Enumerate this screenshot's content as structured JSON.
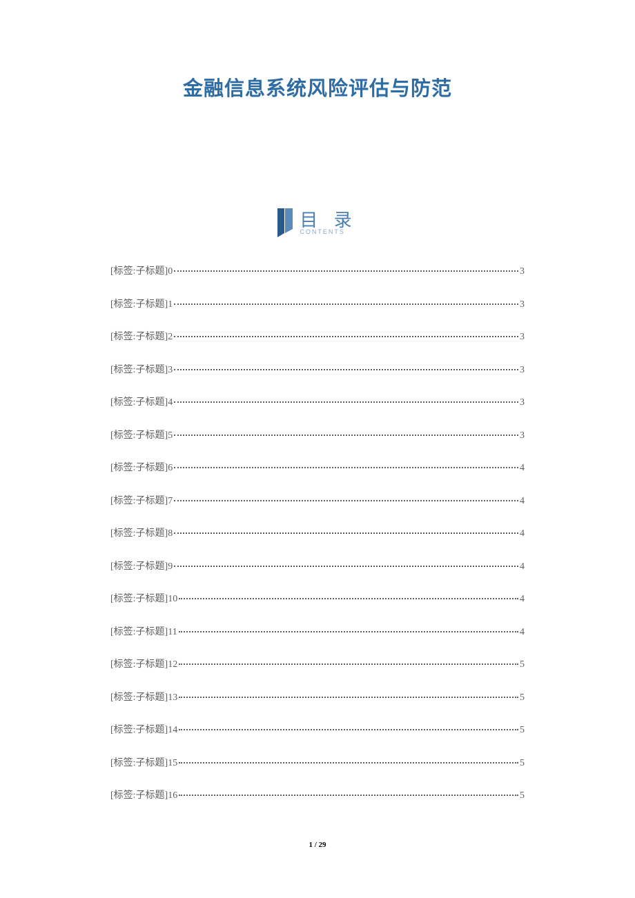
{
  "title": "金融信息系统风险评估与防范",
  "title_color": "#2e6ca4",
  "contents": {
    "label": "目 录",
    "sublabel": "CONTENTS",
    "label_color": "#4a7fb0",
    "icon_colors": [
      "#2a5a8a",
      "#5a8ab8"
    ]
  },
  "toc": {
    "prefix": "[标签:子标题]",
    "text_color": "#5e5e5e",
    "items": [
      {
        "index": "0",
        "page": "3"
      },
      {
        "index": "1",
        "page": "3"
      },
      {
        "index": "2",
        "page": "3"
      },
      {
        "index": "3",
        "page": "3"
      },
      {
        "index": "4",
        "page": "3"
      },
      {
        "index": "5",
        "page": "3"
      },
      {
        "index": "6",
        "page": "4"
      },
      {
        "index": "7",
        "page": "4"
      },
      {
        "index": "8",
        "page": "4"
      },
      {
        "index": "9",
        "page": "4"
      },
      {
        "index": "10",
        "page": "4"
      },
      {
        "index": "11",
        "page": "4"
      },
      {
        "index": "12",
        "page": "5"
      },
      {
        "index": "13",
        "page": "5"
      },
      {
        "index": "14",
        "page": "5"
      },
      {
        "index": "15",
        "page": "5"
      },
      {
        "index": "16",
        "page": "5"
      }
    ]
  },
  "footer": {
    "current": "1",
    "separator": " / ",
    "total": "29"
  }
}
